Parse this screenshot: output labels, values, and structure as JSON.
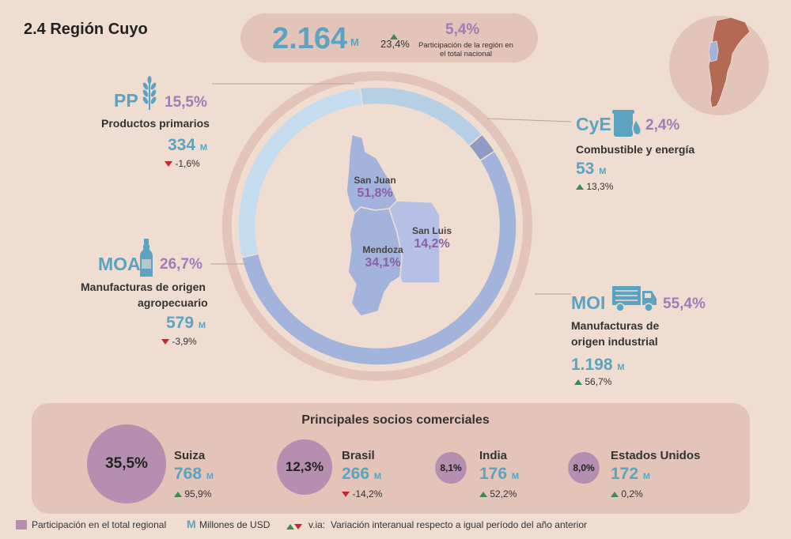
{
  "title": "2.4 Región Cuyo",
  "summary": {
    "value": "2.164",
    "unit": "M",
    "variation": "23,4%",
    "variation_dir": "up",
    "share": "5,4%",
    "share_label": "Participación de la región en el total nacional"
  },
  "colors": {
    "background": "#f0ddd2",
    "value_blue": "#5ba3c0",
    "share_purple": "#a07cb6",
    "up_green": "#3f8a55",
    "down_red": "#c7282e",
    "ring": "#e2c5b8"
  },
  "categories": {
    "pp": {
      "code": "PP",
      "icon": "wheat-icon",
      "pct": "15,5%",
      "name": "Productos primarios",
      "value": "334",
      "unit": "M",
      "var": "-1,6%",
      "dir": "down"
    },
    "cye": {
      "code": "CyE",
      "icon": "fuel-icon",
      "pct": "2,4%",
      "name": "Combustible y energía",
      "value": "53",
      "unit": "M",
      "var": "13,3%",
      "dir": "up"
    },
    "moa": {
      "code": "MOA",
      "icon": "bottle-icon",
      "pct": "26,7%",
      "name_line1": "Manufacturas de origen",
      "name_line2": "agropecuario",
      "value": "579",
      "unit": "M",
      "var": "-3,9%",
      "dir": "down"
    },
    "moi": {
      "code": "MOI",
      "icon": "truck-icon",
      "pct": "55,4%",
      "name_line1": "Manufacturas de",
      "name_line2": "origen industrial",
      "value": "1.198",
      "unit": "M",
      "var": "56,7%",
      "dir": "up"
    }
  },
  "provinces": {
    "san_juan": {
      "name": "San Juan",
      "pct": "51,8%"
    },
    "mendoza": {
      "name": "Mendoza",
      "pct": "34,1%"
    },
    "san_luis": {
      "name": "San Luis",
      "pct": "14,2%"
    }
  },
  "partners": {
    "title": "Principales socios comerciales",
    "items": [
      {
        "name": "Suiza",
        "share": "35,5%",
        "value": "768",
        "unit": "M",
        "var": "95,9%",
        "dir": "up"
      },
      {
        "name": "Brasil",
        "share": "12,3%",
        "value": "266",
        "unit": "M",
        "var": "-14,2%",
        "dir": "down"
      },
      {
        "name": "India",
        "share": "8,1%",
        "value": "176",
        "unit": "M",
        "var": "52,2%",
        "dir": "up"
      },
      {
        "name": "Estados Unidos",
        "share": "8,0%",
        "value": "172",
        "unit": "M",
        "var": "0,2%",
        "dir": "up"
      }
    ]
  },
  "legend": {
    "share_label": "Participación en el total regional",
    "m_symbol": "M",
    "m_label": "Millones de USD",
    "via_symbol": "v.ia:",
    "via_label": "Variación interanual respecto a igual período del año anterior"
  },
  "chart_data": {
    "type": "pie",
    "title": "",
    "categories": [
      "PP",
      "CyE",
      "MOI",
      "MOA"
    ],
    "values": [
      15.5,
      2.4,
      55.4,
      26.7
    ],
    "colors": [
      "#b5d0e4",
      "#8e9bc4",
      "#a3b4dc",
      "#c5dbee"
    ]
  }
}
